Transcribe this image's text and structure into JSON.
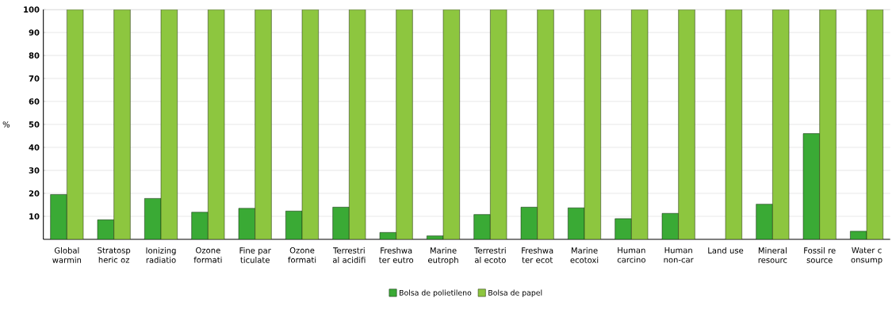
{
  "chart_data": {
    "type": "bar",
    "ylabel": "%",
    "categories": [
      "Global warmin",
      "Stratosp heric oz",
      "Ionizing radiatio",
      "Ozone formati",
      "Fine par ticulate",
      "Ozone formati",
      "Terrestri al acidifi",
      "Freshwa ter eutro",
      "Marine eutroph",
      "Terrestri al ecoto",
      "Freshwa ter ecot",
      "Marine ecotoxi",
      "Human carcino",
      "Human non-car",
      "Land use",
      "Mineral resourc",
      "Fossil re source",
      "Water c onsump"
    ],
    "series": [
      {
        "name": "Bolsa de polietileno",
        "color": "#3aaa35",
        "values": [
          19.5,
          8.5,
          17.8,
          11.8,
          13.5,
          12.3,
          14,
          3,
          1.5,
          10.8,
          14,
          13.7,
          9,
          11.3,
          null,
          15.3,
          46,
          3.5
        ]
      },
      {
        "name": "Bolsa de papel",
        "color": "#8dc63f",
        "values": [
          100,
          100,
          100,
          100,
          100,
          100,
          100,
          100,
          100,
          100,
          100,
          100,
          100,
          100,
          100,
          100,
          100,
          100
        ]
      }
    ],
    "ylim": [
      0,
      100
    ],
    "yticks": [
      10,
      20,
      30,
      40,
      50,
      60,
      70,
      80,
      90,
      100
    ],
    "grid": "y",
    "legend": "bottom"
  }
}
